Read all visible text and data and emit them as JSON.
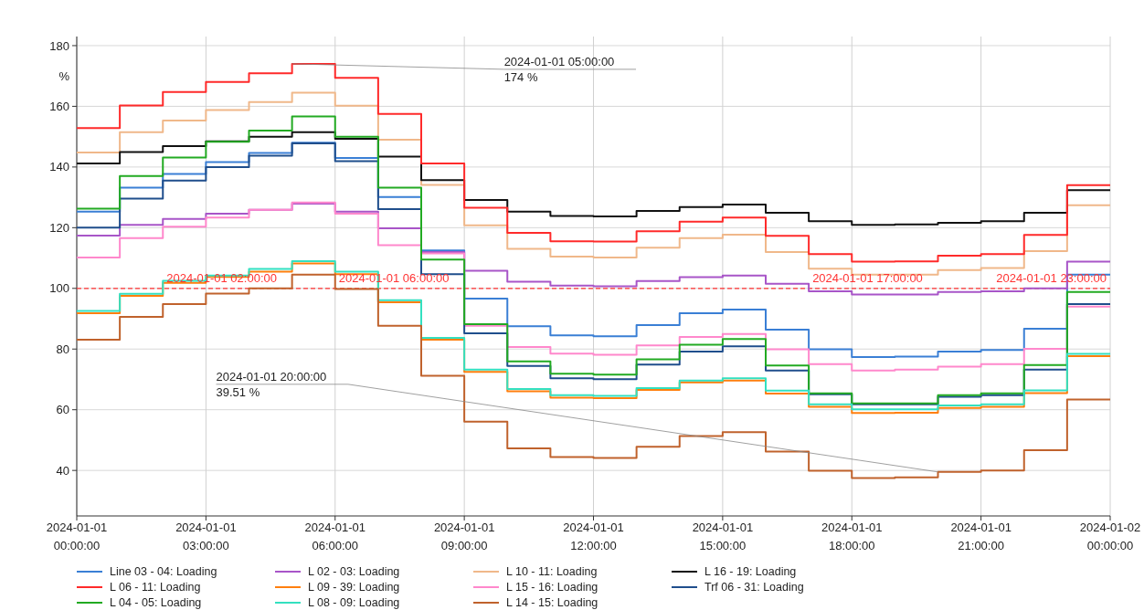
{
  "chart_data": {
    "type": "step",
    "ylabel": "%",
    "x": [
      "2024-01-01T00:00",
      "2024-01-01T01:00",
      "2024-01-01T02:00",
      "2024-01-01T03:00",
      "2024-01-01T04:00",
      "2024-01-01T05:00",
      "2024-01-01T06:00",
      "2024-01-01T07:00",
      "2024-01-01T08:00",
      "2024-01-01T09:00",
      "2024-01-01T10:00",
      "2024-01-01T11:00",
      "2024-01-01T12:00",
      "2024-01-01T13:00",
      "2024-01-01T14:00",
      "2024-01-01T15:00",
      "2024-01-01T16:00",
      "2024-01-01T17:00",
      "2024-01-01T18:00",
      "2024-01-01T19:00",
      "2024-01-01T20:00",
      "2024-01-01T21:00",
      "2024-01-01T22:00",
      "2024-01-01T23:00",
      "2024-01-02T00:00"
    ],
    "series": [
      {
        "name": "Line 03 - 04: Loading",
        "color": "#3a7fd5",
        "values": [
          125.3,
          133.2,
          137.7,
          141.6,
          144.6,
          148.0,
          143.0,
          130.1,
          112.5,
          96.6,
          87.5,
          84.5,
          84.2,
          87.9,
          91.8,
          93.0,
          86.4,
          79.9,
          77.4,
          77.5,
          79.2,
          79.7,
          86.7,
          104.5,
          104.5
        ]
      },
      {
        "name": "L 02 - 03: Loading",
        "color": "#a855c8",
        "values": [
          117.4,
          120.9,
          122.9,
          124.6,
          125.9,
          127.9,
          125.3,
          119.8,
          112.0,
          105.8,
          102.2,
          100.9,
          100.7,
          102.4,
          103.7,
          104.2,
          101.5,
          99.0,
          98.0,
          98.0,
          98.8,
          99.0,
          100,
          108.8,
          108.8
        ]
      },
      {
        "name": "L 10 - 11: Loading",
        "color": "#f0b88a",
        "values": [
          144.8,
          151.5,
          155.3,
          158.8,
          161.4,
          164.5,
          160.2,
          149.0,
          134.1,
          120.8,
          113.0,
          110.5,
          110.2,
          113.4,
          116.6,
          117.7,
          112.0,
          106.5,
          104.5,
          104.5,
          106.0,
          106.7,
          112.3,
          127.4,
          127.4
        ]
      },
      {
        "name": "L 16 - 19: Loading",
        "color": "#111111",
        "values": [
          141.2,
          144.9,
          146.9,
          148.5,
          150.0,
          151.5,
          149.3,
          143.4,
          135.7,
          129.1,
          125.3,
          123.9,
          123.7,
          125.5,
          126.8,
          127.6,
          124.9,
          122.1,
          120.9,
          121.1,
          121.6,
          122.1,
          124.9,
          132.4,
          132.4
        ]
      },
      {
        "name": "L 06 - 11: Loading",
        "color": "#ff2a2a",
        "values": [
          152.8,
          160.3,
          164.7,
          168.0,
          170.9,
          174,
          169.4,
          157.5,
          141.2,
          126.6,
          118.3,
          115.5,
          115.4,
          118.8,
          122.0,
          123.3,
          117.3,
          111.3,
          108.8,
          108.9,
          110.8,
          111.3,
          117.6,
          134.0,
          134.0
        ]
      },
      {
        "name": "L 09 - 39: Loading",
        "color": "#ff7f0e",
        "values": [
          91.8,
          97.5,
          101.8,
          103.8,
          105.5,
          108.2,
          104.7,
          95.4,
          83.1,
          72.5,
          66.1,
          64.0,
          63.8,
          66.5,
          69.0,
          69.6,
          65.3,
          61.0,
          58.9,
          59.0,
          60.6,
          61.0,
          65.5,
          77.7,
          77.7
        ]
      },
      {
        "name": "L 15 - 16: Loading",
        "color": "#ff88cc",
        "values": [
          110.2,
          116.6,
          120.3,
          123.3,
          125.9,
          128.3,
          124.6,
          114.2,
          111.5,
          87.7,
          80.7,
          78.5,
          78.1,
          81.2,
          84.0,
          85.0,
          79.9,
          75.0,
          72.9,
          73.2,
          74.2,
          75.0,
          80.1,
          94.0,
          94.0
        ]
      },
      {
        "name": "Trf 06 - 31: Loading",
        "color": "#1f4e8c",
        "values": [
          120.0,
          129.6,
          135.5,
          140.0,
          143.7,
          147.8,
          141.9,
          126.1,
          104.7,
          85.2,
          74.4,
          70.4,
          70.1,
          74.9,
          79.2,
          80.9,
          72.9,
          65.1,
          61.8,
          61.8,
          64.3,
          64.8,
          73.2,
          94.8,
          94.8
        ]
      },
      {
        "name": "L 04 - 05: Loading",
        "color": "#22aa22",
        "values": [
          126.3,
          137.0,
          143.1,
          148.3,
          152.0,
          156.7,
          150.0,
          133.2,
          109.5,
          88.2,
          75.9,
          71.9,
          71.6,
          76.6,
          81.4,
          83.3,
          74.6,
          65.4,
          62.1,
          62.1,
          64.8,
          65.4,
          74.7,
          98.8,
          98.8
        ]
      },
      {
        "name": "L 08 - 09: Loading",
        "color": "#33e0c0",
        "values": [
          92.6,
          98.2,
          102.5,
          104.2,
          106.4,
          109.0,
          105.5,
          96.1,
          83.7,
          73.2,
          66.8,
          64.8,
          64.6,
          67.1,
          69.6,
          70.4,
          66.3,
          61.8,
          60.1,
          60.1,
          61.4,
          61.8,
          66.4,
          78.4,
          78.4
        ]
      },
      {
        "name": "L 14 - 15: Loading",
        "color": "#c0622c",
        "values": [
          83.1,
          90.6,
          94.8,
          98.3,
          100,
          104.5,
          99.8,
          87.7,
          71.2,
          56.1,
          47.3,
          44.4,
          44.1,
          47.8,
          51.3,
          52.6,
          46.2,
          39.9,
          37.5,
          37.7,
          39.5,
          40.0,
          46.7,
          63.4,
          63.4
        ]
      }
    ],
    "xlim": [
      "2024-01-01T00:00",
      "2024-01-02T00:00"
    ],
    "xticks": [
      {
        "value": "2024-01-01T00:00",
        "label": "2024-01-01 00:00:00"
      },
      {
        "value": "2024-01-01T03:00",
        "label": "2024-01-01 03:00:00"
      },
      {
        "value": "2024-01-01T06:00",
        "label": "2024-01-01 06:00:00"
      },
      {
        "value": "2024-01-01T09:00",
        "label": "2024-01-01 09:00:00"
      },
      {
        "value": "2024-01-01T12:00",
        "label": "2024-01-01 12:00:00"
      },
      {
        "value": "2024-01-01T15:00",
        "label": "2024-01-01 15:00:00"
      },
      {
        "value": "2024-01-01T18:00",
        "label": "2024-01-01 18:00:00"
      },
      {
        "value": "2024-01-01T21:00",
        "label": "2024-01-01 21:00:00"
      },
      {
        "value": "2024-01-02T00:00",
        "label": "2024-01-02 00:00:00"
      }
    ],
    "ylim": [
      25,
      183
    ],
    "yticks": [
      40,
      60,
      80,
      100,
      120,
      140,
      160,
      180
    ],
    "grid": true,
    "legend": "bottom",
    "line_style": "solid",
    "marker": "none",
    "ref_lines": [
      {
        "axis": "y",
        "value": 100,
        "color": "#ff3333",
        "line_style": "dashed"
      }
    ],
    "annotations": [
      {
        "text": "2024-01-01 02:00:00",
        "x": "2024-01-01T02:00",
        "y": 100
      },
      {
        "text": "2024-01-01 06:00:00",
        "x": "2024-01-01T06:00",
        "y": 100
      },
      {
        "text": "2024-01-01 17:00:00",
        "x": "2024-01-01T17:00",
        "y": 100
      },
      {
        "text": "2024-01-01 23:00:00",
        "x": "2024-01-01T23:00",
        "y": 100
      },
      {
        "text": "2024-01-01 05:00:00\n174 %",
        "x": "2024-01-01T05:00",
        "y": 174
      },
      {
        "text": "2024-01-01 20:00:00\n39.51 %",
        "x": "2024-01-01T20:00",
        "y": 39.5
      }
    ]
  }
}
